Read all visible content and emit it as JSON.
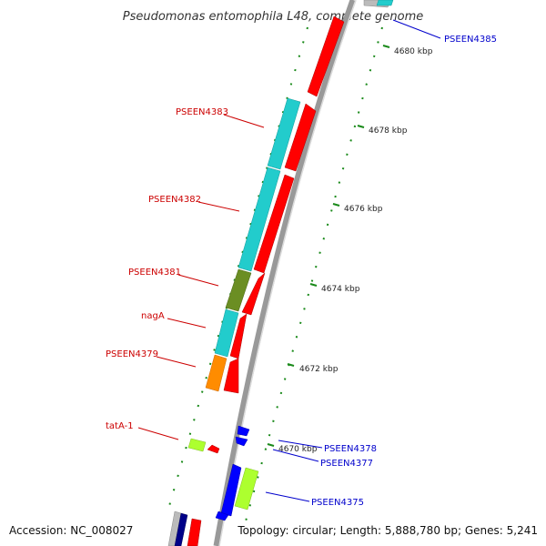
{
  "title": "Pseudomonas entomophila L48, complete genome",
  "footer": {
    "accession": "Accession: NC_008027",
    "topology": "Topology: circular; Length: 5,888,780 bp; Genes: 5,241"
  },
  "colors": {
    "backbone": "#999999",
    "forward_label": "#cc0000",
    "reverse_label": "#0000cc",
    "tick": "#1a8a1a",
    "cds_red": "#ff0000",
    "cds_cyan": "#22cccc",
    "cds_olive": "#6b8e23",
    "cds_orange": "#ff8c00",
    "cds_lime": "#adff2f",
    "cds_blue": "#0000ff"
  },
  "ticks": [
    {
      "label": "4680 kbp"
    },
    {
      "label": "4678 kbp"
    },
    {
      "label": "4676 kbp"
    },
    {
      "label": "4674 kbp"
    },
    {
      "label": "4672 kbp"
    },
    {
      "label": "4670 kbp"
    }
  ],
  "gene_labels": {
    "PSEEN4385": "PSEEN4385",
    "PSEEN4383": "PSEEN4383",
    "PSEEN4382": "PSEEN4382",
    "PSEEN4381": "PSEEN4381",
    "nagA": "nagA",
    "PSEEN4379": "PSEEN4379",
    "tatA_1": "tatA-1",
    "PSEEN4378": "PSEEN4378",
    "PSEEN4377": "PSEEN4377",
    "PSEEN4375": "PSEEN4375"
  }
}
